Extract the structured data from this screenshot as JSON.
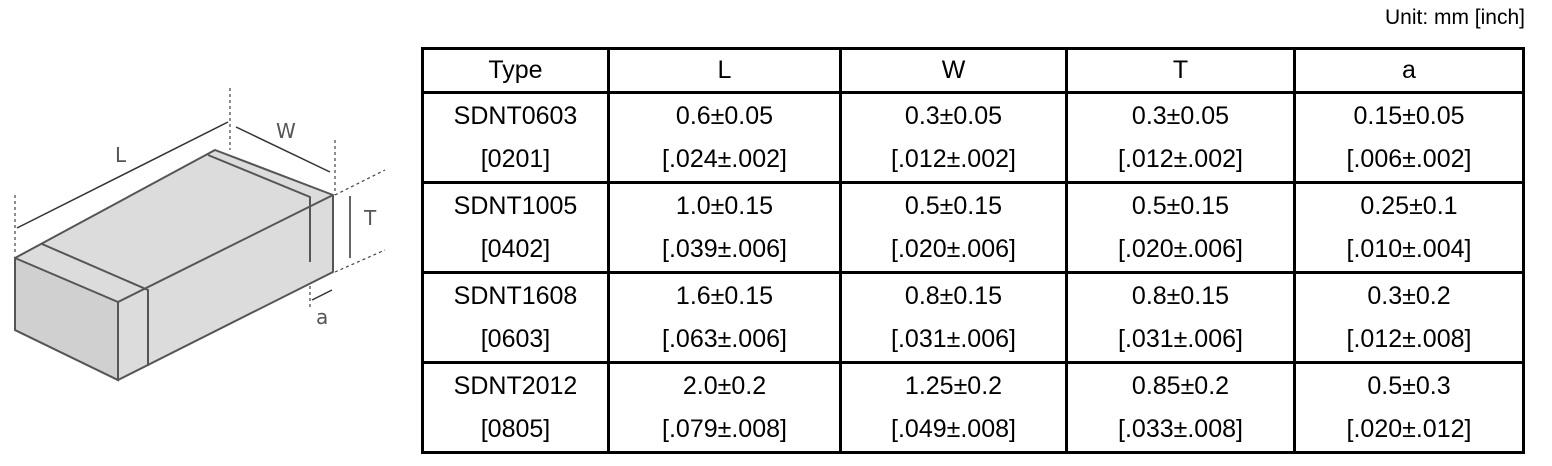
{
  "unit": "Unit: mm [inch]",
  "diagram": {
    "labels": [
      "L",
      "W",
      "T",
      "a"
    ]
  },
  "table": {
    "header": [
      "Type",
      "L",
      "W",
      "T",
      "a"
    ],
    "rows": [
      [
        [
          "SDNT0603",
          "[0201]"
        ],
        [
          "0.6±0.05",
          "[.024±.002]"
        ],
        [
          "0.3±0.05",
          "[.012±.002]"
        ],
        [
          "0.3±0.05",
          "[.012±.002]"
        ],
        [
          "0.15±0.05",
          "[.006±.002]"
        ]
      ],
      [
        [
          "SDNT1005",
          "[0402]"
        ],
        [
          "1.0±0.15",
          "[.039±.006]"
        ],
        [
          "0.5±0.15",
          "[.020±.006]"
        ],
        [
          "0.5±0.15",
          "[.020±.006]"
        ],
        [
          "0.25±0.1",
          "[.010±.004]"
        ]
      ],
      [
        [
          "SDNT1608",
          "[0603]"
        ],
        [
          "1.6±0.15",
          "[.063±.006]"
        ],
        [
          "0.8±0.15",
          "[.031±.006]"
        ],
        [
          "0.8±0.15",
          "[.031±.006]"
        ],
        [
          "0.3±0.2",
          "[.012±.008]"
        ]
      ],
      [
        [
          "SDNT2012",
          "[0805]"
        ],
        [
          "2.0±0.2",
          "[.079±.008]"
        ],
        [
          "1.25±0.2",
          "[.049±.008]"
        ],
        [
          "0.85±0.2",
          "[.033±.008]"
        ],
        [
          "0.5±0.3",
          "[.020±.012]"
        ]
      ]
    ]
  }
}
